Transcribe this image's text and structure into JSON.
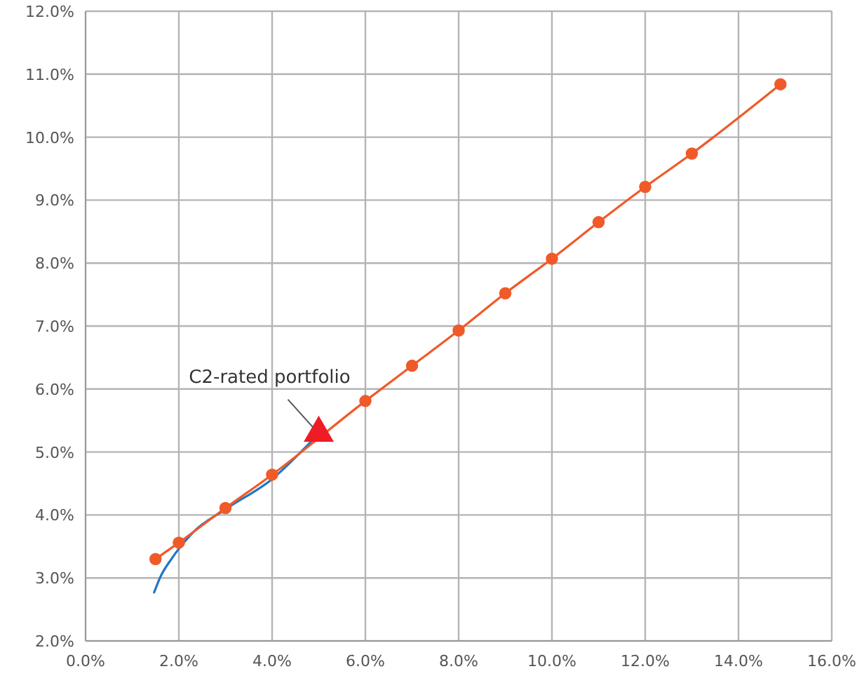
{
  "chart_data": {
    "type": "line",
    "xlim": [
      0,
      16
    ],
    "xticks": [
      {
        "value": 0,
        "label": "0.0%"
      },
      {
        "value": 2,
        "label": "2.0%"
      },
      {
        "value": 4,
        "label": "4.0%"
      },
      {
        "value": 6,
        "label": "6.0%"
      },
      {
        "value": 8,
        "label": "8.0%"
      },
      {
        "value": 10,
        "label": "10.0%"
      },
      {
        "value": 12,
        "label": "12.0%"
      },
      {
        "value": 14,
        "label": "14.0%"
      },
      {
        "value": 16,
        "label": "16.0%"
      }
    ],
    "ylim": [
      2,
      12
    ],
    "yticks": [
      {
        "value": 2,
        "label": "2.0%"
      },
      {
        "value": 3,
        "label": "3.0%"
      },
      {
        "value": 4,
        "label": "4.0%"
      },
      {
        "value": 5,
        "label": "5.0%"
      },
      {
        "value": 6,
        "label": "6.0%"
      },
      {
        "value": 7,
        "label": "7.0%"
      },
      {
        "value": 8,
        "label": "8.0%"
      },
      {
        "value": 9,
        "label": "9.0%"
      },
      {
        "value": 10,
        "label": "10.0%"
      },
      {
        "value": 11,
        "label": "11.0%"
      },
      {
        "value": 12,
        "label": "12.0%"
      }
    ],
    "grid": true,
    "series": [
      {
        "color": "#1f77c4",
        "marker": "none",
        "x": [
          1.47,
          1.6,
          1.85,
          2.3,
          3.0,
          4.0,
          4.83
        ],
        "values": [
          2.77,
          3.01,
          3.31,
          3.72,
          4.09,
          4.57,
          5.16
        ]
      },
      {
        "color": "#f05a28",
        "marker": "circle",
        "x": [
          1.5,
          2.0,
          3.0,
          4.0,
          6.0,
          7.0,
          8.0,
          9.0,
          10.0,
          11.0,
          12.0,
          13.0,
          14.9
        ],
        "values": [
          3.3,
          3.56,
          4.11,
          4.64,
          5.81,
          6.37,
          6.93,
          7.52,
          8.07,
          8.65,
          9.21,
          9.74,
          10.84
        ]
      },
      {
        "type": "scatter",
        "color": "#ee1c25",
        "marker": "triangle",
        "x": [
          5.0
        ],
        "values": [
          5.3
        ]
      }
    ],
    "annotations": [
      {
        "text": "C2-rated portfolio",
        "x": 5.0,
        "y": 5.3
      }
    ]
  }
}
